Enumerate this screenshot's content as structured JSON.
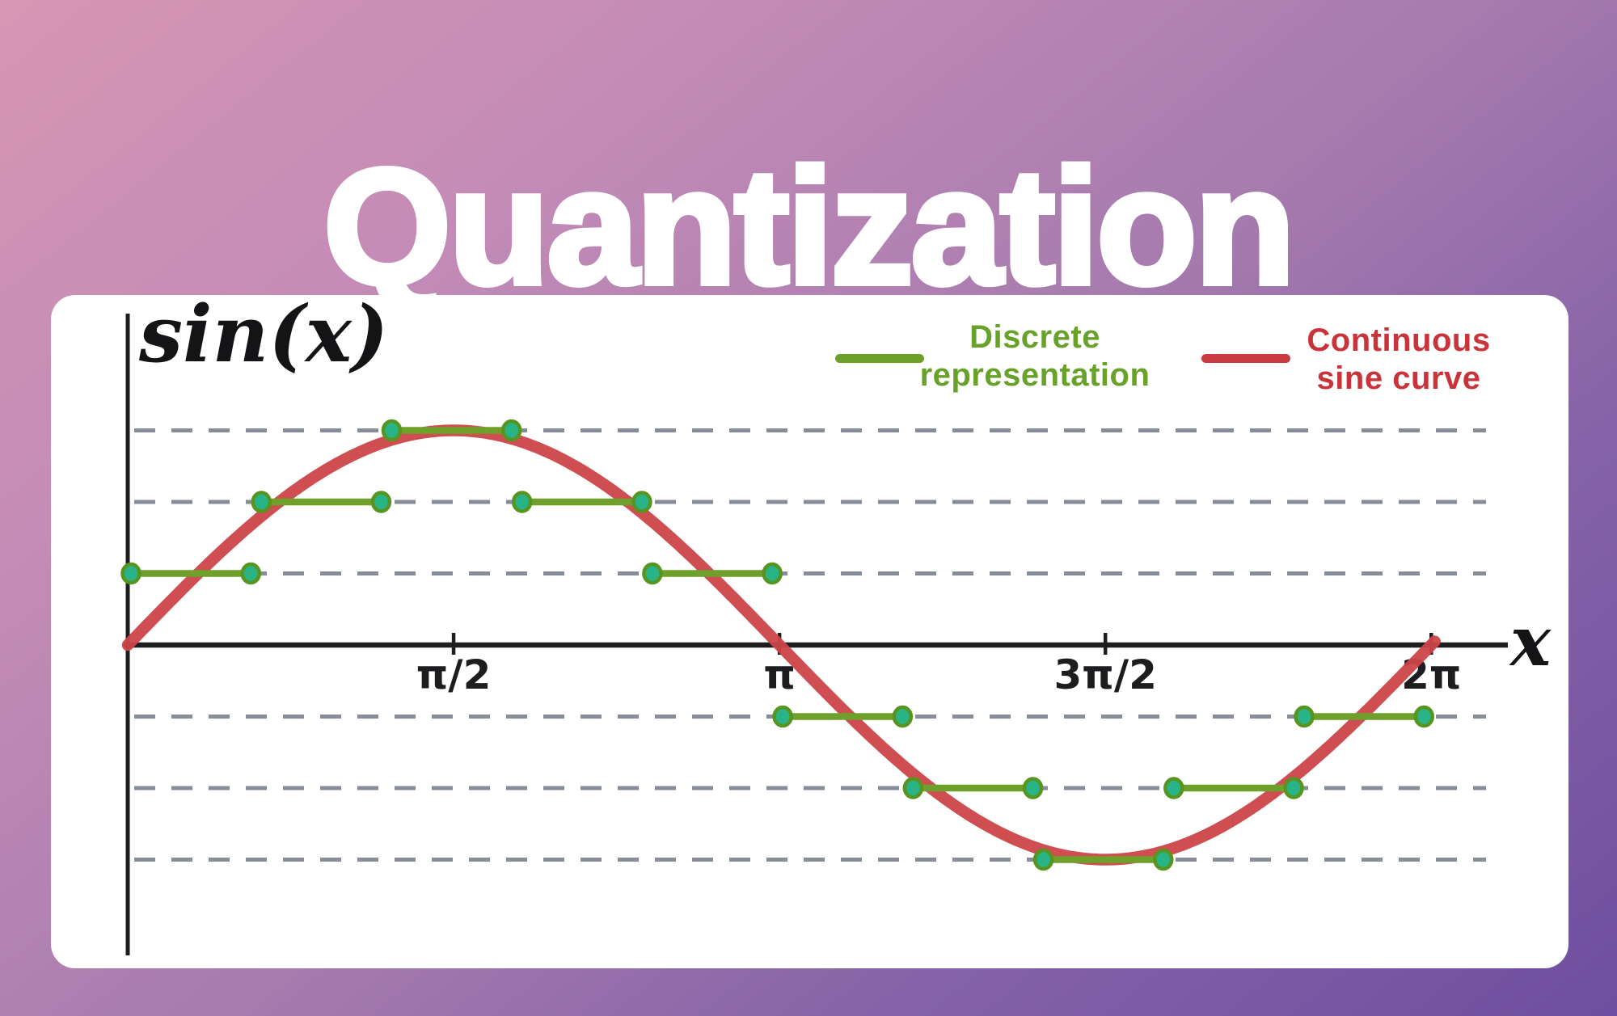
{
  "title": "Quantization",
  "legend": [
    {
      "name": "discrete",
      "label_lines": [
        "Discrete",
        "representation"
      ],
      "color": "#69a22a"
    },
    {
      "name": "continuous",
      "label_lines": [
        "Continuous",
        "sine curve"
      ],
      "color": "#c9343a"
    }
  ],
  "chart_data": {
    "type": "line",
    "title": "Quantization",
    "xlabel": "x",
    "ylabel": "sin(x)",
    "x_range_rad": [
      0,
      6.2832
    ],
    "y_range": [
      -1.15,
      1.15
    ],
    "grid": "horizontal dashed lines at quantization levels",
    "legend_position": "top-right",
    "quantization_levels": [
      1,
      0.6667,
      0.3333,
      -0.3333,
      -0.6667,
      -1
    ],
    "x_ticks": [
      {
        "label": "π/2",
        "value": 1.5708
      },
      {
        "label": "π",
        "value": 3.1416
      },
      {
        "label": "3π/2",
        "value": 4.7124
      },
      {
        "label": "2π",
        "value": 6.2832
      }
    ],
    "colors": {
      "axis": "#1d1d20",
      "grid": "#868d98"
    },
    "series": [
      {
        "name": "Continuous sine curve",
        "type": "continuous",
        "fn": "sin(x)",
        "color": "#cc4549"
      },
      {
        "name": "Discrete representation",
        "type": "step",
        "color": "#6fa02b",
        "dot_fill": "#28b487",
        "dot_ring": "#579420",
        "steps": [
          {
            "x0": 0.0,
            "x1": 0.6283,
            "y": 0.3333
          },
          {
            "x0": 0.6283,
            "x1": 1.2566,
            "y": 0.6667
          },
          {
            "x0": 1.2566,
            "x1": 1.885,
            "y": 1.0
          },
          {
            "x0": 1.885,
            "x1": 2.5133,
            "y": 0.6667
          },
          {
            "x0": 2.5133,
            "x1": 3.1416,
            "y": 0.3333
          },
          {
            "x0": 3.1416,
            "x1": 3.7699,
            "y": -0.3333
          },
          {
            "x0": 3.7699,
            "x1": 4.3982,
            "y": -0.6667
          },
          {
            "x0": 4.3982,
            "x1": 5.0265,
            "y": -1.0
          },
          {
            "x0": 5.0265,
            "x1": 5.6549,
            "y": -0.6667
          },
          {
            "x0": 5.6549,
            "x1": 6.2832,
            "y": -0.3333
          }
        ]
      }
    ]
  }
}
